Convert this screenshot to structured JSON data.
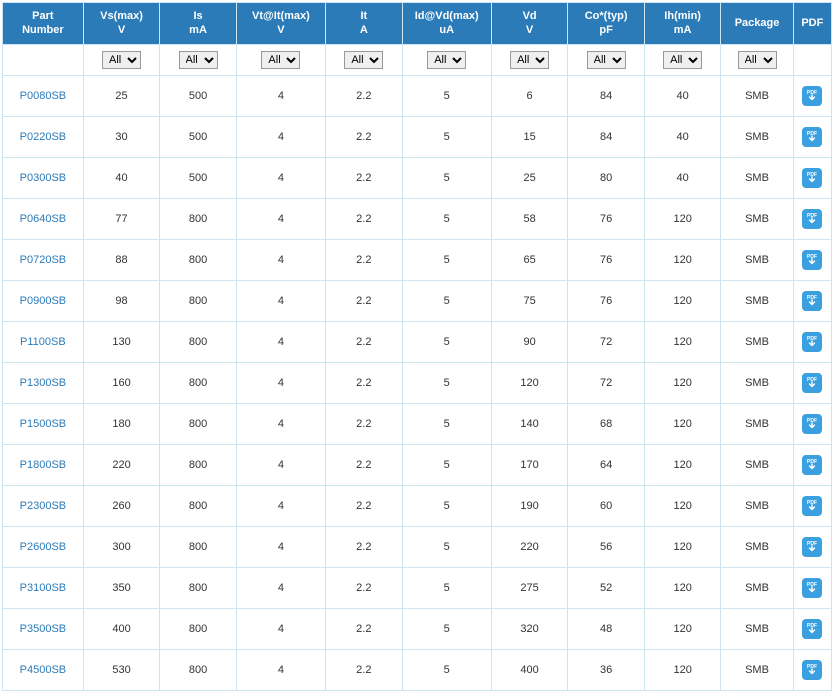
{
  "colors": {
    "header_bg": "#2b7bb9",
    "header_fg": "#ffffff",
    "border": "#cde4f1",
    "link": "#2b7bb9",
    "pdf_bg": "#3aa0e0",
    "text": "#333333"
  },
  "filter_label": "All",
  "columns": [
    {
      "key": "part",
      "line1": "Part",
      "line2": "Number",
      "filter": false
    },
    {
      "key": "vs",
      "line1": "Vs(max)",
      "line2": "V",
      "filter": true
    },
    {
      "key": "is",
      "line1": "Is",
      "line2": "mA",
      "filter": true
    },
    {
      "key": "vt",
      "line1": "Vt@It(max)",
      "line2": "V",
      "filter": true
    },
    {
      "key": "it",
      "line1": "It",
      "line2": "A",
      "filter": true
    },
    {
      "key": "id",
      "line1": "Id@Vd(max)",
      "line2": "uA",
      "filter": true
    },
    {
      "key": "vd",
      "line1": "Vd",
      "line2": "V",
      "filter": true
    },
    {
      "key": "co",
      "line1": "Co*(typ)",
      "line2": "pF",
      "filter": true
    },
    {
      "key": "ih",
      "line1": "Ih(min)",
      "line2": "mA",
      "filter": true
    },
    {
      "key": "pkg",
      "line1": "Package",
      "line2": "",
      "filter": true
    },
    {
      "key": "pdf",
      "line1": "PDF",
      "line2": "",
      "filter": false
    }
  ],
  "rows": [
    {
      "part": "P0080SB",
      "vs": "25",
      "is": "500",
      "vt": "4",
      "it": "2.2",
      "id": "5",
      "vd": "6",
      "co": "84",
      "ih": "40",
      "pkg": "SMB"
    },
    {
      "part": "P0220SB",
      "vs": "30",
      "is": "500",
      "vt": "4",
      "it": "2.2",
      "id": "5",
      "vd": "15",
      "co": "84",
      "ih": "40",
      "pkg": "SMB"
    },
    {
      "part": "P0300SB",
      "vs": "40",
      "is": "500",
      "vt": "4",
      "it": "2.2",
      "id": "5",
      "vd": "25",
      "co": "80",
      "ih": "40",
      "pkg": "SMB"
    },
    {
      "part": "P0640SB",
      "vs": "77",
      "is": "800",
      "vt": "4",
      "it": "2.2",
      "id": "5",
      "vd": "58",
      "co": "76",
      "ih": "120",
      "pkg": "SMB"
    },
    {
      "part": "P0720SB",
      "vs": "88",
      "is": "800",
      "vt": "4",
      "it": "2.2",
      "id": "5",
      "vd": "65",
      "co": "76",
      "ih": "120",
      "pkg": "SMB"
    },
    {
      "part": "P0900SB",
      "vs": "98",
      "is": "800",
      "vt": "4",
      "it": "2.2",
      "id": "5",
      "vd": "75",
      "co": "76",
      "ih": "120",
      "pkg": "SMB"
    },
    {
      "part": "P1100SB",
      "vs": "130",
      "is": "800",
      "vt": "4",
      "it": "2.2",
      "id": "5",
      "vd": "90",
      "co": "72",
      "ih": "120",
      "pkg": "SMB"
    },
    {
      "part": "P1300SB",
      "vs": "160",
      "is": "800",
      "vt": "4",
      "it": "2.2",
      "id": "5",
      "vd": "120",
      "co": "72",
      "ih": "120",
      "pkg": "SMB"
    },
    {
      "part": "P1500SB",
      "vs": "180",
      "is": "800",
      "vt": "4",
      "it": "2.2",
      "id": "5",
      "vd": "140",
      "co": "68",
      "ih": "120",
      "pkg": "SMB"
    },
    {
      "part": "P1800SB",
      "vs": "220",
      "is": "800",
      "vt": "4",
      "it": "2.2",
      "id": "5",
      "vd": "170",
      "co": "64",
      "ih": "120",
      "pkg": "SMB"
    },
    {
      "part": "P2300SB",
      "vs": "260",
      "is": "800",
      "vt": "4",
      "it": "2.2",
      "id": "5",
      "vd": "190",
      "co": "60",
      "ih": "120",
      "pkg": "SMB"
    },
    {
      "part": "P2600SB",
      "vs": "300",
      "is": "800",
      "vt": "4",
      "it": "2.2",
      "id": "5",
      "vd": "220",
      "co": "56",
      "ih": "120",
      "pkg": "SMB"
    },
    {
      "part": "P3100SB",
      "vs": "350",
      "is": "800",
      "vt": "4",
      "it": "2.2",
      "id": "5",
      "vd": "275",
      "co": "52",
      "ih": "120",
      "pkg": "SMB"
    },
    {
      "part": "P3500SB",
      "vs": "400",
      "is": "800",
      "vt": "4",
      "it": "2.2",
      "id": "5",
      "vd": "320",
      "co": "48",
      "ih": "120",
      "pkg": "SMB"
    },
    {
      "part": "P4500SB",
      "vs": "530",
      "is": "800",
      "vt": "4",
      "it": "2.2",
      "id": "5",
      "vd": "400",
      "co": "36",
      "ih": "120",
      "pkg": "SMB"
    }
  ]
}
